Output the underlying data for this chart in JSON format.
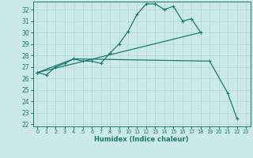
{
  "background_color": "#cce9e9",
  "grid_color": "#aacccc",
  "line_color": "#1a7a6e",
  "xlabel": "Humidex (Indice chaleur)",
  "ylim": [
    21.8,
    32.7
  ],
  "xlim": [
    -0.5,
    23.5
  ],
  "yticks": [
    22,
    23,
    24,
    25,
    26,
    27,
    28,
    29,
    30,
    31,
    32
  ],
  "xticks": [
    0,
    1,
    2,
    3,
    4,
    5,
    6,
    7,
    8,
    9,
    10,
    11,
    12,
    13,
    14,
    15,
    16,
    17,
    18,
    19,
    20,
    21,
    22,
    23
  ],
  "series": [
    {
      "x": [
        0,
        1,
        2,
        3,
        4,
        5,
        6,
        7,
        8,
        9,
        10,
        11,
        12,
        13,
        14,
        15,
        16,
        17,
        18
      ],
      "y": [
        26.5,
        26.3,
        27.0,
        27.3,
        27.7,
        27.5,
        27.5,
        27.3,
        28.2,
        29.0,
        30.1,
        31.6,
        32.5,
        32.5,
        32.0,
        32.3,
        31.0,
        31.2,
        30.0
      ],
      "marker": "+"
    },
    {
      "x": [
        0,
        18
      ],
      "y": [
        26.5,
        30.0
      ],
      "marker": null
    },
    {
      "x": [
        0,
        4,
        19,
        21,
        22
      ],
      "y": [
        26.5,
        27.7,
        27.5,
        24.7,
        22.5
      ],
      "marker": "+"
    }
  ]
}
